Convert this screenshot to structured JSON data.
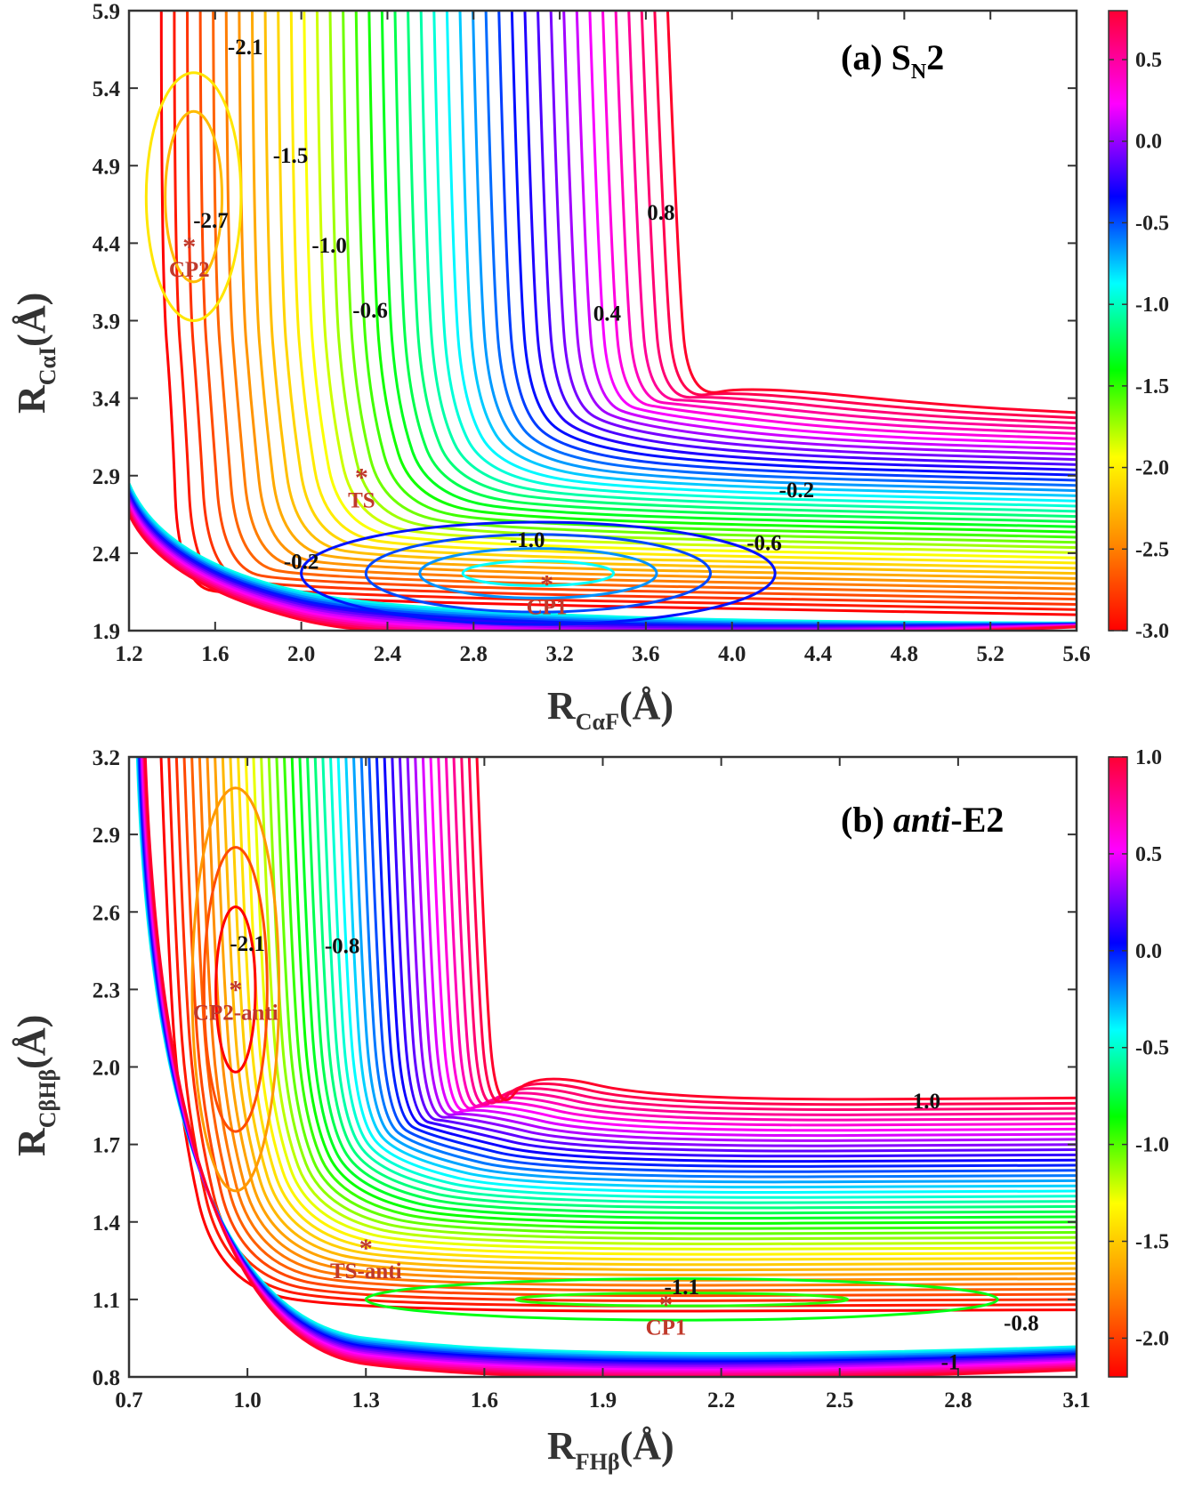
{
  "chart_data": [
    {
      "type": "contour",
      "title_prefix": "(a) S",
      "title_sub": "N",
      "title_suffix": "2",
      "xlabel_main": "R",
      "xlabel_sub": "CαF",
      "xlabel_unit": "(Å)",
      "ylabel_main": "R",
      "ylabel_sub": "CαI",
      "ylabel_unit": "(Å)",
      "xlim": [
        1.2,
        5.6
      ],
      "ylim": [
        1.9,
        5.9
      ],
      "xticks": [
        "1.2",
        "1.6",
        "2.0",
        "2.4",
        "2.8",
        "3.2",
        "3.6",
        "4.0",
        "4.4",
        "4.8",
        "5.2",
        "5.6"
      ],
      "yticks": [
        "1.9",
        "2.4",
        "2.9",
        "3.4",
        "3.9",
        "4.4",
        "4.9",
        "5.4",
        "5.9"
      ],
      "colorbar": {
        "min": -3.0,
        "max": 0.8,
        "ticks": [
          "0.5",
          "0.0",
          "-0.5",
          "-1.0",
          "-1.5",
          "-2.0",
          "-2.5",
          "-3.0"
        ]
      },
      "contour_labels": [
        {
          "text": "0.8",
          "x": 3.67,
          "y": 4.55
        },
        {
          "text": "0.4",
          "x": 3.42,
          "y": 3.9
        },
        {
          "text": "-0.2",
          "x": 4.3,
          "y": 2.76
        },
        {
          "text": "-0.6",
          "x": 4.15,
          "y": 2.42
        },
        {
          "text": "-1.0",
          "x": 3.05,
          "y": 2.44
        },
        {
          "text": "-0.2",
          "x": 2.0,
          "y": 2.3
        },
        {
          "text": "-0.6",
          "x": 2.32,
          "y": 3.92
        },
        {
          "text": "-1.0",
          "x": 2.13,
          "y": 4.34
        },
        {
          "text": "-1.5",
          "x": 1.95,
          "y": 4.92
        },
        {
          "text": "-2.1",
          "x": 1.74,
          "y": 5.62
        },
        {
          "text": "-2.7",
          "x": 1.58,
          "y": 4.5
        }
      ],
      "points": [
        {
          "name": "CP2",
          "x": 1.48,
          "y": 4.38
        },
        {
          "name": "TS",
          "x": 2.28,
          "y": 2.89
        },
        {
          "name": "CP1",
          "x": 3.14,
          "y": 2.2
        }
      ]
    },
    {
      "type": "contour",
      "title_prefix": "(b) ",
      "title_italic": "anti",
      "title_suffix": "-E2",
      "xlabel_main": "R",
      "xlabel_sub": "FHβ",
      "xlabel_unit": "(Å)",
      "ylabel_main": "R",
      "ylabel_sub": "CβHβ",
      "ylabel_unit": "(Å)",
      "xlim": [
        0.7,
        3.1
      ],
      "ylim": [
        0.8,
        3.2
      ],
      "xticks": [
        "0.7",
        "1.0",
        "1.3",
        "1.6",
        "1.9",
        "2.2",
        "2.5",
        "2.8",
        "3.1"
      ],
      "yticks": [
        "0.8",
        "1.1",
        "1.4",
        "1.7",
        "2.0",
        "2.3",
        "2.6",
        "2.9",
        "3.2"
      ],
      "colorbar": {
        "min": -2.2,
        "max": 1.0,
        "ticks": [
          "1.0",
          "0.5",
          "0.0",
          "-0.5",
          "-1.0",
          "-1.5",
          "-2.0"
        ]
      },
      "contour_labels": [
        {
          "text": "1.0",
          "x": 2.72,
          "y": 1.84
        },
        {
          "text": "-1.1",
          "x": 2.1,
          "y": 1.12
        },
        {
          "text": "-0.8",
          "x": 2.96,
          "y": 0.98
        },
        {
          "text": "-1",
          "x": 2.78,
          "y": 0.83
        },
        {
          "text": "-2.1",
          "x": 1.0,
          "y": 2.45
        },
        {
          "text": "-0.8",
          "x": 1.24,
          "y": 2.44
        }
      ],
      "points": [
        {
          "name": "CP2-anti",
          "x": 0.97,
          "y": 2.3
        },
        {
          "name": "TS-anti",
          "x": 1.3,
          "y": 1.3
        },
        {
          "name": "CP1",
          "x": 2.06,
          "y": 1.08
        }
      ]
    }
  ]
}
